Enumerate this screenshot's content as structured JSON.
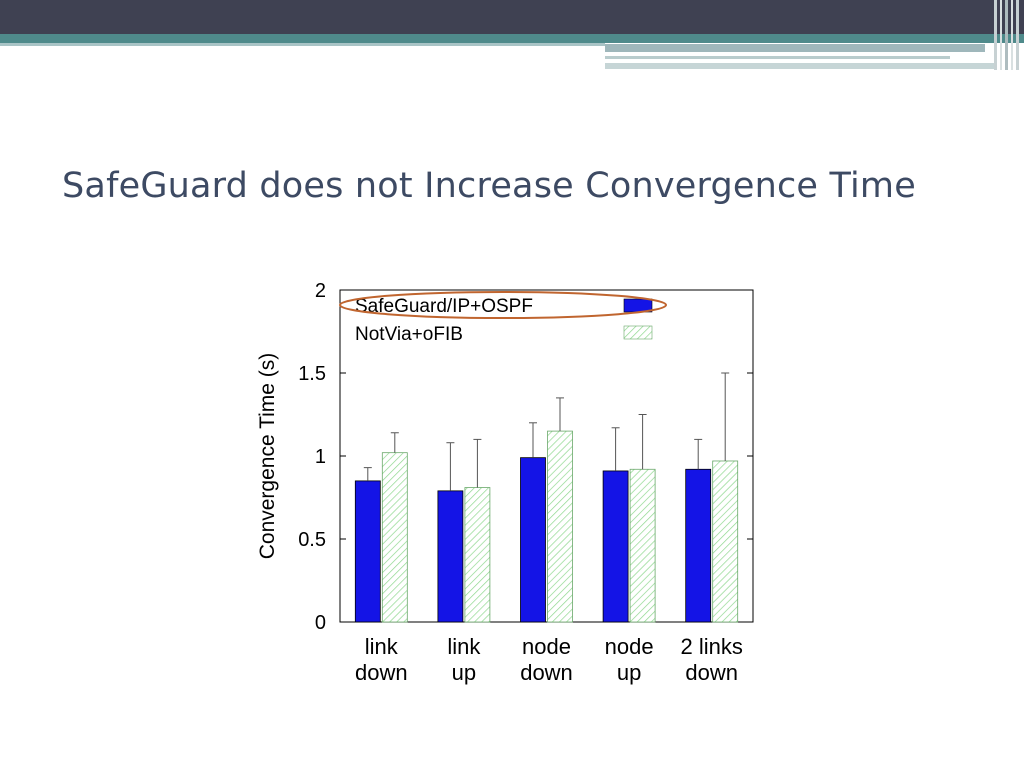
{
  "slide": {
    "title": "SafeGuard does not Increase Convergence Time"
  },
  "colors": {
    "header_dark": "#3f4152",
    "header_teal": "#4f8a8b",
    "title_text": "#3d4a63",
    "series_safeguard": "#1414e6",
    "series_notvia_hatch": "#8fd88f",
    "highlight_ellipse": "#c0652f"
  },
  "chart_data": {
    "type": "bar",
    "ylabel": "Convergence Time (s)",
    "xlabel": "",
    "ylim": [
      0,
      2
    ],
    "yticks": [
      0,
      0.5,
      1,
      1.5,
      2
    ],
    "ytick_labels": [
      "0",
      "0.5",
      "1",
      "1.5",
      "2"
    ],
    "categories": [
      [
        "link",
        "down"
      ],
      [
        "link",
        "up"
      ],
      [
        "node",
        "down"
      ],
      [
        "node",
        "up"
      ],
      [
        "2 links",
        "down"
      ]
    ],
    "legend_position": "top",
    "series": [
      {
        "name": "SafeGuard/IP+OSPF",
        "style": "solid blue",
        "values": [
          0.85,
          0.79,
          0.99,
          0.91,
          0.92
        ],
        "error_high": [
          0.93,
          1.08,
          1.2,
          1.17,
          1.1
        ]
      },
      {
        "name": "NotVia+oFIB",
        "style": "light green hatched",
        "values": [
          1.02,
          0.81,
          1.15,
          0.92,
          0.97
        ],
        "error_high": [
          1.14,
          1.1,
          1.35,
          1.25,
          1.5
        ]
      }
    ],
    "annotation": "ellipse highlighting SafeGuard/IP+OSPF legend entry"
  }
}
